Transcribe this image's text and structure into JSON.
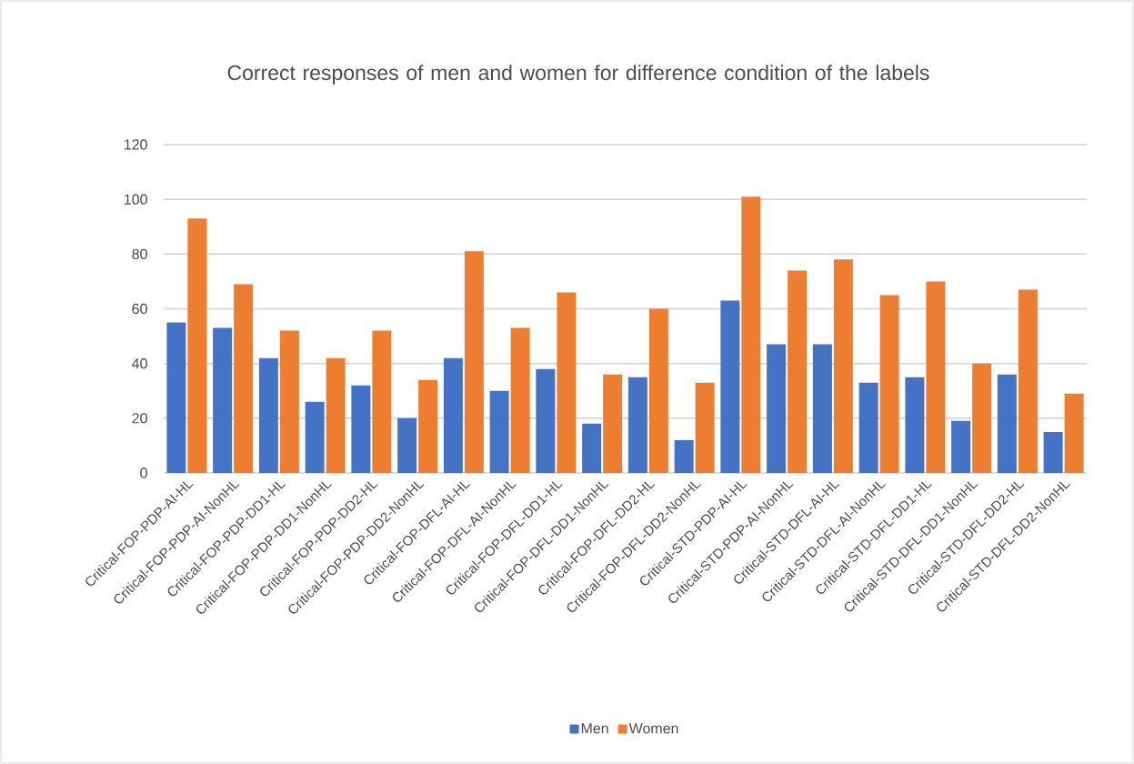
{
  "chart_data": {
    "type": "bar",
    "title": "Correct responses of men and women for difference condition of the labels",
    "categories": [
      "Critical-FOP-PDP-AI-HL",
      "Critical-FOP-PDP-AI-NonHL",
      "Critical-FOP-PDP-DD1-HL",
      "Critical-FOP-PDP-DD1-NonHL",
      "Critical-FOP-PDP-DD2-HL",
      "Critical-FOP-PDP-DD2-NonHL",
      "Critical-FOP-DFL-AI-HL",
      "Critical-FOP-DFL-AI-NonHL",
      "Critical-FOP-DFL-DD1-HL",
      "Critical-FOP-DFL-DD1-NonHL",
      "Critical-FOP-DFL-DD2-HL",
      "Critical-FOP-DFL-DD2-NonHL",
      "Critical-STD-PDP-AI-HL",
      "Critical-STD-PDP-AI-NonHL",
      "Critical-STD-DFL-AI-HL",
      "Critical-STD-DFL-AI-NonHL",
      "Critical-STD-DFL-DD1-HL",
      "Critical-STD-DFL-DD1-NonHL",
      "Critical-STD-DFL-DD2-HL",
      "Critical-STD-DFL-DD2-NonHL"
    ],
    "series": [
      {
        "name": "Men",
        "color": "#4472c4",
        "values": [
          55,
          53,
          42,
          26,
          32,
          20,
          42,
          30,
          38,
          18,
          35,
          12,
          63,
          47,
          47,
          33,
          35,
          19,
          36,
          15
        ]
      },
      {
        "name": "Women",
        "color": "#ed7d31",
        "values": [
          93,
          69,
          52,
          42,
          52,
          34,
          81,
          53,
          66,
          36,
          60,
          33,
          101,
          74,
          78,
          65,
          70,
          40,
          67,
          29
        ]
      }
    ],
    "ylim": [
      0,
      120
    ],
    "yticks": [
      0,
      20,
      40,
      60,
      80,
      100,
      120
    ],
    "grid": "y",
    "legend": "bottom"
  }
}
